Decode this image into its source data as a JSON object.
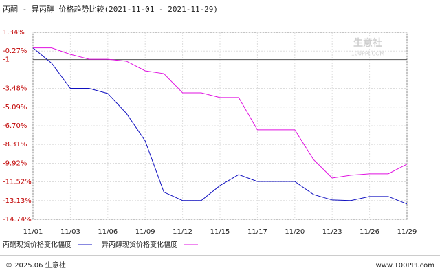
{
  "chart_data": {
    "type": "line",
    "title": "丙酮 - 异丙醇 价格趋势比较(2021-11-01 - 2021-11-29)",
    "categories": [
      "11/01",
      null,
      "11/03",
      null,
      "11/06",
      null,
      "11/09",
      null,
      "11/12",
      null,
      "11/15",
      null,
      "11/17",
      null,
      "11/20",
      null,
      "11/23",
      null,
      "11/26",
      null,
      "11/29"
    ],
    "series": [
      {
        "name": "丙酮现货价格变化幅度",
        "color": "#1010c0",
        "values": [
          0,
          -1.32,
          -3.48,
          -3.48,
          -3.92,
          -5.64,
          -8.0,
          -12.4,
          -13.13,
          -13.13,
          -11.84,
          -10.9,
          -11.49,
          -11.49,
          -11.49,
          -12.61,
          -13.08,
          -13.13,
          -12.78,
          -12.78,
          -13.43
        ]
      },
      {
        "name": "异丙醇现货价格变化幅度",
        "color": "#e010e0",
        "values": [
          0,
          0,
          -0.55,
          -0.97,
          -0.97,
          -1.14,
          -1.97,
          -2.21,
          -3.86,
          -3.86,
          -4.27,
          -4.27,
          -7.05,
          -7.05,
          -7.05,
          -9.6,
          -11.19,
          -10.95,
          -10.83,
          -10.83,
          -10.0
        ]
      }
    ],
    "ylim": [
      -14.74,
      1.34
    ],
    "yticks": [
      {
        "value": 1.34,
        "label": "1.34%"
      },
      {
        "value": -0.27,
        "label": "-0.27%"
      },
      -1,
      {
        "value": -3.48,
        "label": "-3.48%"
      },
      {
        "value": -5.09,
        "label": "-5.09%"
      },
      {
        "value": -6.7,
        "label": "-6.70%"
      },
      {
        "value": -8.31,
        "label": "-8.31%"
      },
      {
        "value": -9.92,
        "label": "-9.92%"
      },
      {
        "value": -11.52,
        "label": "-11.52%"
      },
      {
        "value": -13.13,
        "label": "-13.13%"
      },
      {
        "value": -14.74,
        "label": "-14.74%"
      }
    ],
    "grid": true,
    "watermark": {
      "name": "生意社",
      "site": "100PPI.COM"
    },
    "footer": {
      "left": "© 2025.06 生意社",
      "right": "www.100PPI.com"
    }
  }
}
